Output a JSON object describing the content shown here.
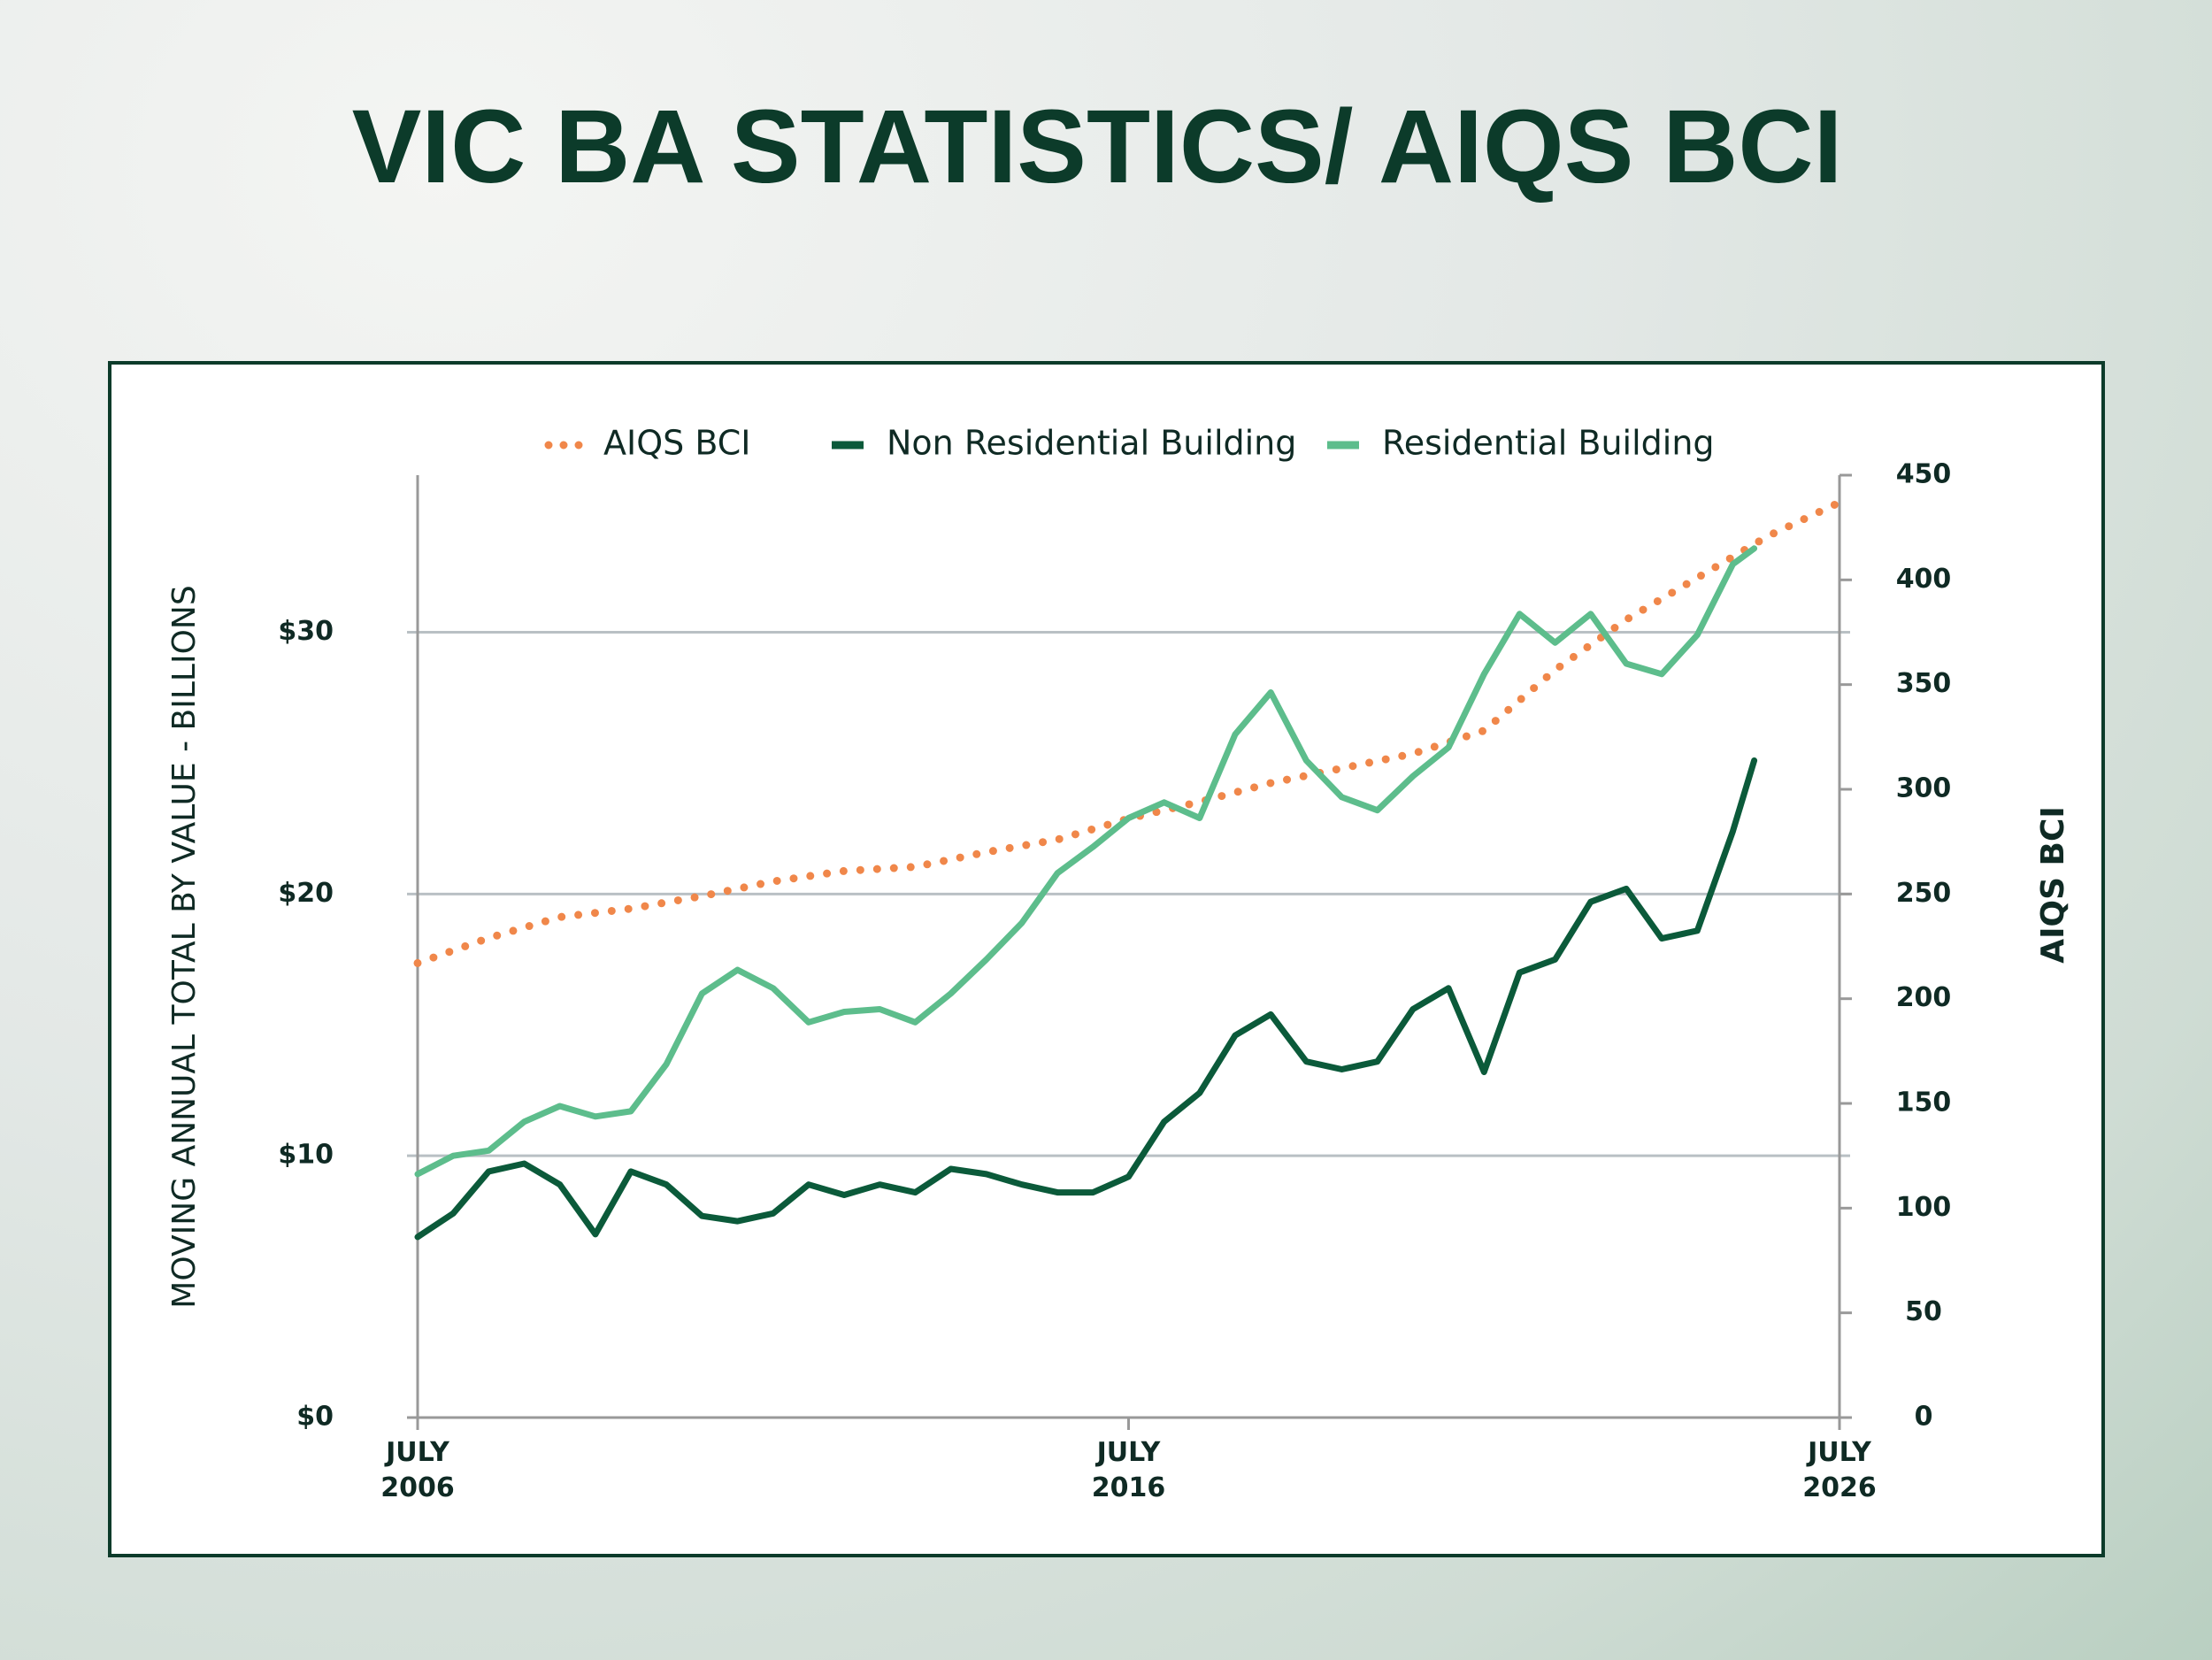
{
  "chart_data": {
    "type": "line",
    "title": "VIC BA STATISTICS/ AIQS BCI",
    "ylabel": "MOVING ANNUAL TOTAL BY VALUE - BILLIONS",
    "y2label": "AIQS BCI",
    "legend": "top",
    "grid": true,
    "xlim": [
      2006.5,
      2026.5
    ],
    "xticks": [
      {
        "value": 2006.5,
        "label": "JULY 2006"
      },
      {
        "value": 2016.5,
        "label": "JULY 2016"
      },
      {
        "value": 2026.5,
        "label": "JULY 2026"
      }
    ],
    "ylim": [
      0,
      36
    ],
    "yticks": [
      {
        "value": 0,
        "label": "$0"
      },
      {
        "value": 10,
        "label": "$10"
      },
      {
        "value": 20,
        "label": "$20"
      },
      {
        "value": 30,
        "label": "$30"
      }
    ],
    "y2lim": [
      0,
      450
    ],
    "y2ticks": [
      0,
      50,
      100,
      150,
      200,
      250,
      300,
      350,
      400,
      450
    ],
    "series": [
      {
        "name": "AIQS BCI",
        "color": "#f0874a",
        "style": "dotted",
        "axis": "y2",
        "x": [
          2006.5,
          2007.5,
          2008.5,
          2009.5,
          2010.5,
          2011.5,
          2012.5,
          2013.5,
          2014.5,
          2015.5,
          2016.5,
          2017.5,
          2018.5,
          2019.5,
          2020.5,
          2021.5,
          2022.5,
          2023.5,
          2024.5,
          2025.5,
          2026.5
        ],
        "values": [
          217,
          229,
          239,
          243,
          249,
          256,
          261,
          263,
          270,
          276,
          286,
          294,
          303,
          310,
          317,
          328,
          357,
          381,
          401,
          421,
          437
        ]
      },
      {
        "name": "Non Residential Building",
        "color": "#0b5a3a",
        "style": "solid",
        "x": [
          2006.5,
          2007.0,
          2007.5,
          2008.0,
          2008.5,
          2009.0,
          2009.5,
          2010.0,
          2010.5,
          2011.0,
          2011.5,
          2012.0,
          2012.5,
          2013.0,
          2013.5,
          2014.0,
          2014.5,
          2015.0,
          2015.5,
          2016.0,
          2016.5,
          2017.0,
          2017.5,
          2018.0,
          2018.5,
          2019.0,
          2019.5,
          2020.0,
          2020.5,
          2021.0,
          2021.5,
          2022.0,
          2022.5,
          2023.0,
          2023.5,
          2024.0,
          2024.5,
          2025.0,
          2025.3
        ],
        "values": [
          6.9,
          7.8,
          9.4,
          9.7,
          8.9,
          7.0,
          9.4,
          8.9,
          7.7,
          7.5,
          7.8,
          8.9,
          8.5,
          8.9,
          8.6,
          9.5,
          9.3,
          8.9,
          8.6,
          8.6,
          9.2,
          11.3,
          12.4,
          14.6,
          15.4,
          13.6,
          13.3,
          13.6,
          15.6,
          16.4,
          13.2,
          17.0,
          17.5,
          19.7,
          20.2,
          18.3,
          18.6,
          22.4,
          25.1
        ]
      },
      {
        "name": "Residential Building",
        "color": "#5dbd8c",
        "style": "solid",
        "x": [
          2006.5,
          2007.0,
          2007.5,
          2008.0,
          2008.5,
          2009.0,
          2009.5,
          2010.0,
          2010.5,
          2011.0,
          2011.5,
          2012.0,
          2012.5,
          2013.0,
          2013.5,
          2014.0,
          2014.5,
          2015.0,
          2015.5,
          2016.0,
          2016.5,
          2017.0,
          2017.5,
          2018.0,
          2018.5,
          2019.0,
          2019.5,
          2020.0,
          2020.5,
          2021.0,
          2021.5,
          2022.0,
          2022.5,
          2023.0,
          2023.5,
          2024.0,
          2024.5,
          2025.0,
          2025.3
        ],
        "values": [
          9.3,
          10.0,
          10.2,
          11.3,
          11.9,
          11.5,
          11.7,
          13.5,
          16.2,
          17.1,
          16.4,
          15.1,
          15.5,
          15.6,
          15.1,
          16.2,
          17.5,
          18.9,
          20.8,
          21.8,
          22.9,
          23.5,
          22.9,
          26.1,
          27.7,
          25.1,
          23.7,
          23.2,
          24.5,
          25.6,
          28.4,
          30.7,
          29.6,
          30.7,
          28.8,
          28.4,
          29.9,
          32.6,
          33.2
        ]
      }
    ]
  }
}
